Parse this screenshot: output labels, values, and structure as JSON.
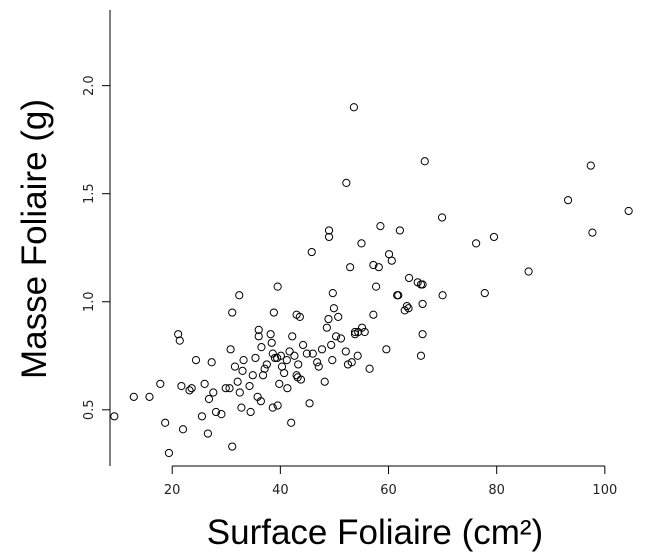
{
  "chart_data": {
    "type": "scatter",
    "title": "",
    "xlabel": "Surface Foliaire (cm²)",
    "ylabel": "Masse Foliaire (g)",
    "x_ticks": [
      20,
      40,
      60,
      80,
      100
    ],
    "y_ticks": [
      0.5,
      1.0,
      1.5,
      2.0
    ],
    "y_tick_labels": [
      "0.5",
      "1.0",
      "1.5",
      "2.0"
    ],
    "xlim": [
      8.5,
      106.5
    ],
    "ylim": [
      0.24,
      2.35
    ],
    "grid": false,
    "series": [
      {
        "points": [
          [
            9.3,
            0.47
          ],
          [
            12.9,
            0.56
          ],
          [
            15.8,
            0.56
          ],
          [
            17.8,
            0.62
          ],
          [
            18.7,
            0.44
          ],
          [
            19.4,
            0.3
          ],
          [
            21.1,
            0.85
          ],
          [
            21.4,
            0.82
          ],
          [
            21.7,
            0.61
          ],
          [
            22.0,
            0.41
          ],
          [
            23.2,
            0.59
          ],
          [
            23.6,
            0.6
          ],
          [
            24.4,
            0.73
          ],
          [
            25.5,
            0.47
          ],
          [
            26.0,
            0.62
          ],
          [
            26.6,
            0.39
          ],
          [
            26.8,
            0.55
          ],
          [
            27.6,
            0.58
          ],
          [
            27.3,
            0.72
          ],
          [
            28.1,
            0.49
          ],
          [
            29.1,
            0.48
          ],
          [
            29.9,
            0.6
          ],
          [
            30.6,
            0.6
          ],
          [
            30.8,
            0.78
          ],
          [
            31.1,
            0.95
          ],
          [
            31.1,
            0.33
          ],
          [
            31.6,
            0.7
          ],
          [
            32.1,
            0.63
          ],
          [
            32.4,
            1.03
          ],
          [
            32.5,
            0.58
          ],
          [
            32.8,
            0.51
          ],
          [
            33.0,
            0.68
          ],
          [
            33.2,
            0.73
          ],
          [
            34.3,
            0.61
          ],
          [
            34.5,
            0.49
          ],
          [
            34.9,
            0.66
          ],
          [
            35.4,
            0.74
          ],
          [
            35.8,
            0.56
          ],
          [
            36.0,
            0.87
          ],
          [
            36.0,
            0.84
          ],
          [
            36.4,
            0.54
          ],
          [
            36.5,
            0.79
          ],
          [
            36.8,
            0.66
          ],
          [
            37.1,
            0.69
          ],
          [
            37.5,
            0.71
          ],
          [
            38.2,
            0.85
          ],
          [
            38.4,
            0.81
          ],
          [
            38.6,
            0.76
          ],
          [
            38.6,
            0.51
          ],
          [
            38.8,
            0.95
          ],
          [
            39.0,
            0.74
          ],
          [
            39.4,
            0.74
          ],
          [
            39.5,
            0.52
          ],
          [
            39.5,
            1.07
          ],
          [
            39.8,
            0.62
          ],
          [
            40.1,
            0.75
          ],
          [
            40.3,
            0.7
          ],
          [
            40.7,
            0.67
          ],
          [
            41.2,
            0.73
          ],
          [
            41.3,
            0.6
          ],
          [
            41.7,
            0.77
          ],
          [
            42.0,
            0.44
          ],
          [
            42.2,
            0.84
          ],
          [
            42.6,
            0.75
          ],
          [
            43.0,
            0.94
          ],
          [
            43.0,
            0.66
          ],
          [
            43.2,
            0.65
          ],
          [
            43.3,
            0.71
          ],
          [
            43.6,
            0.93
          ],
          [
            43.8,
            0.64
          ],
          [
            44.2,
            0.8
          ],
          [
            44.9,
            0.76
          ],
          [
            45.4,
            0.53
          ],
          [
            45.8,
            1.23
          ],
          [
            46.0,
            0.76
          ],
          [
            46.8,
            0.72
          ],
          [
            47.1,
            0.7
          ],
          [
            47.7,
            0.78
          ],
          [
            48.2,
            0.63
          ],
          [
            48.6,
            0.88
          ],
          [
            48.9,
            0.92
          ],
          [
            49.0,
            1.33
          ],
          [
            49.0,
            1.3
          ],
          [
            49.4,
            0.8
          ],
          [
            49.6,
            0.73
          ],
          [
            49.7,
            1.04
          ],
          [
            49.9,
            0.97
          ],
          [
            50.3,
            0.84
          ],
          [
            50.7,
            0.93
          ],
          [
            51.2,
            0.83
          ],
          [
            52.1,
            0.77
          ],
          [
            52.2,
            1.55
          ],
          [
            52.5,
            0.71
          ],
          [
            52.9,
            1.16
          ],
          [
            53.2,
            0.72
          ],
          [
            53.6,
            1.9
          ],
          [
            53.8,
            0.86
          ],
          [
            53.8,
            0.85
          ],
          [
            54.3,
            0.75
          ],
          [
            54.4,
            0.86
          ],
          [
            55.0,
            1.27
          ],
          [
            55.1,
            0.88
          ],
          [
            55.6,
            0.86
          ],
          [
            56.5,
            0.69
          ],
          [
            57.2,
            0.94
          ],
          [
            57.2,
            1.17
          ],
          [
            57.7,
            1.07
          ],
          [
            58.2,
            1.16
          ],
          [
            58.5,
            1.35
          ],
          [
            59.6,
            0.78
          ],
          [
            60.1,
            1.22
          ],
          [
            60.6,
            1.19
          ],
          [
            61.6,
            1.03
          ],
          [
            61.8,
            1.03
          ],
          [
            62.1,
            1.33
          ],
          [
            63.0,
            0.96
          ],
          [
            63.4,
            0.98
          ],
          [
            63.7,
            0.97
          ],
          [
            63.8,
            1.11
          ],
          [
            65.4,
            1.09
          ],
          [
            66.0,
            1.08
          ],
          [
            66.0,
            0.75
          ],
          [
            66.3,
            0.99
          ],
          [
            66.3,
            0.85
          ],
          [
            66.3,
            1.08
          ],
          [
            66.7,
            1.65
          ],
          [
            69.9,
            1.39
          ],
          [
            70.0,
            1.03
          ],
          [
            76.2,
            1.27
          ],
          [
            77.8,
            1.04
          ],
          [
            79.5,
            1.3
          ],
          [
            85.9,
            1.14
          ],
          [
            93.2,
            1.47
          ],
          [
            97.4,
            1.63
          ],
          [
            97.7,
            1.32
          ],
          [
            104.4,
            1.42
          ]
        ]
      }
    ]
  }
}
